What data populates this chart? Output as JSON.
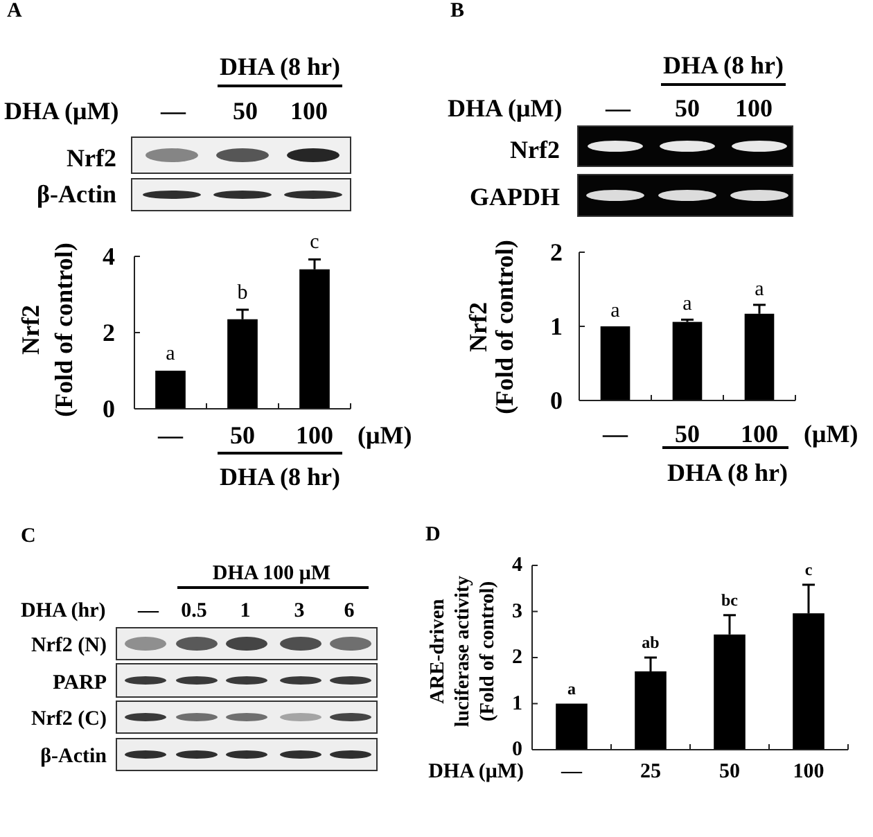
{
  "chart_data": [
    {
      "type": "bar",
      "title": "A",
      "categories": [
        "—",
        "50",
        "100"
      ],
      "values": [
        1,
        2.35,
        3.66
      ],
      "errors": [
        null,
        0.25,
        0.26
      ],
      "value_labels": [
        "a",
        "b",
        "c"
      ],
      "color": "#000000",
      "ylim": [
        0,
        4
      ],
      "yticks": [
        0,
        2,
        4
      ],
      "ylabel": "Nrf2\n(Fold of control)",
      "xlabel": "DHA (8 hr)",
      "annotations": [
        "(μM)",
        "DHA (8 hr)",
        "DHA (μM)",
        "—",
        "50",
        "100",
        "Nrf2",
        "β-Actin"
      ]
    },
    {
      "type": "bar",
      "title": "B",
      "categories": [
        "—",
        "50",
        "100"
      ],
      "values": [
        1,
        1.06,
        1.17
      ],
      "errors": [
        null,
        0.03,
        0.12
      ],
      "value_labels": [
        "a",
        "a",
        "a"
      ],
      "color": "#000000",
      "ylim": [
        0,
        2
      ],
      "yticks": [
        0,
        1,
        2
      ],
      "ylabel": "Nrf2\n(Fold of control)",
      "xlabel": "DHA (8 hr)",
      "annotations": [
        "(μM)",
        "DHA (8 hr)",
        "DHA (μM)",
        "—",
        "50",
        "100",
        "Nrf2",
        "GAPDH"
      ]
    },
    {
      "type": "other",
      "title": "C",
      "annotations": [
        "DHA 100 μM",
        "DHA (hr)",
        "—",
        "0.5",
        "1",
        "3",
        "6",
        "Nrf2 (N)",
        "PARP",
        "Nrf2 (C)",
        "β-Actin"
      ]
    },
    {
      "type": "bar",
      "title": "D",
      "categories": [
        "—",
        "25",
        "50",
        "100"
      ],
      "values": [
        1,
        1.7,
        2.5,
        2.96
      ],
      "errors": [
        null,
        0.3,
        0.42,
        0.62
      ],
      "value_labels": [
        "a",
        "ab",
        "bc",
        "c"
      ],
      "color": "#000000",
      "ylim": [
        0,
        4
      ],
      "yticks": [
        0,
        1,
        2,
        3,
        4
      ],
      "ylabel": "ARE-driven\nluciferase activity\n(Fold of control)",
      "xlabel": "DHA (μM)"
    }
  ]
}
